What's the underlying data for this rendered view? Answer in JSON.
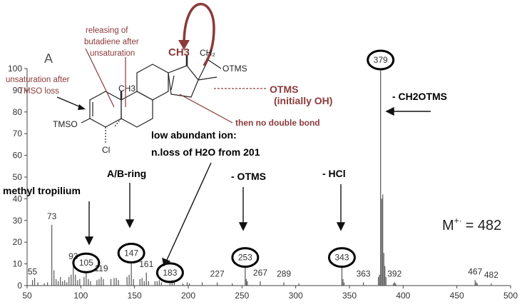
{
  "chart_data": {
    "type": "bar",
    "panel_label": "A",
    "xlim": [
      50,
      500
    ],
    "ylim": [
      0,
      100
    ],
    "x_ticks": [
      50,
      100,
      150,
      200,
      250,
      300,
      350,
      400,
      450,
      500
    ],
    "y_ticks": [
      0,
      10,
      20,
      30,
      40,
      50,
      60,
      70,
      80,
      90,
      100
    ],
    "grid": false,
    "peaks": [
      {
        "x": 55,
        "y": 2.5
      },
      {
        "x": 57,
        "y": 3.5
      },
      {
        "x": 60,
        "y": 1.5
      },
      {
        "x": 66,
        "y": 1
      },
      {
        "x": 69,
        "y": 1.5
      },
      {
        "x": 73,
        "y": 28
      },
      {
        "x": 75,
        "y": 7
      },
      {
        "x": 77,
        "y": 3
      },
      {
        "x": 79,
        "y": 2
      },
      {
        "x": 81,
        "y": 4
      },
      {
        "x": 83,
        "y": 2
      },
      {
        "x": 85,
        "y": 2.5
      },
      {
        "x": 87,
        "y": 1.5
      },
      {
        "x": 89,
        "y": 4
      },
      {
        "x": 91,
        "y": 5
      },
      {
        "x": 93,
        "y": 9.5
      },
      {
        "x": 95,
        "y": 5
      },
      {
        "x": 97,
        "y": 2.5
      },
      {
        "x": 99,
        "y": 3
      },
      {
        "x": 103,
        "y": 4
      },
      {
        "x": 105,
        "y": 6.5
      },
      {
        "x": 107,
        "y": 3
      },
      {
        "x": 109,
        "y": 2
      },
      {
        "x": 115,
        "y": 2.5
      },
      {
        "x": 117,
        "y": 3
      },
      {
        "x": 119,
        "y": 4
      },
      {
        "x": 121,
        "y": 3
      },
      {
        "x": 128,
        "y": 3
      },
      {
        "x": 131,
        "y": 3.5
      },
      {
        "x": 133,
        "y": 3.5
      },
      {
        "x": 135,
        "y": 2.5
      },
      {
        "x": 143,
        "y": 4
      },
      {
        "x": 145,
        "y": 5
      },
      {
        "x": 147,
        "y": 11
      },
      {
        "x": 149,
        "y": 3
      },
      {
        "x": 155,
        "y": 3
      },
      {
        "x": 157,
        "y": 3.5
      },
      {
        "x": 159,
        "y": 2
      },
      {
        "x": 161,
        "y": 6
      },
      {
        "x": 163,
        "y": 2
      },
      {
        "x": 169,
        "y": 2
      },
      {
        "x": 171,
        "y": 2
      },
      {
        "x": 173,
        "y": 2.5
      },
      {
        "x": 175,
        "y": 1.5
      },
      {
        "x": 183,
        "y": 2
      },
      {
        "x": 185,
        "y": 2.5
      },
      {
        "x": 187,
        "y": 1.5
      },
      {
        "x": 195,
        "y": 1
      },
      {
        "x": 199,
        "y": 1.5
      },
      {
        "x": 201,
        "y": 1
      },
      {
        "x": 213,
        "y": 1.5
      },
      {
        "x": 227,
        "y": 1.5
      },
      {
        "x": 241,
        "y": 1
      },
      {
        "x": 253,
        "y": 9
      },
      {
        "x": 254,
        "y": 3
      },
      {
        "x": 255,
        "y": 2
      },
      {
        "x": 267,
        "y": 2
      },
      {
        "x": 289,
        "y": 1.5
      },
      {
        "x": 303,
        "y": 1
      },
      {
        "x": 343,
        "y": 9
      },
      {
        "x": 344,
        "y": 3
      },
      {
        "x": 345,
        "y": 1.5
      },
      {
        "x": 363,
        "y": 1.5
      },
      {
        "x": 377,
        "y": 4
      },
      {
        "x": 378,
        "y": 5
      },
      {
        "x": 379,
        "y": 100
      },
      {
        "x": 380,
        "y": 40
      },
      {
        "x": 381,
        "y": 42
      },
      {
        "x": 382,
        "y": 15
      },
      {
        "x": 383,
        "y": 9
      },
      {
        "x": 384,
        "y": 4
      },
      {
        "x": 391,
        "y": 1
      },
      {
        "x": 392,
        "y": 1.5
      },
      {
        "x": 393,
        "y": 1
      },
      {
        "x": 467,
        "y": 2.5
      },
      {
        "x": 468,
        "y": 1.5
      },
      {
        "x": 469,
        "y": 1
      },
      {
        "x": 482,
        "y": 1
      }
    ],
    "peak_labels": [
      {
        "x": 55,
        "y": 2.5,
        "text": "55",
        "circled": false
      },
      {
        "x": 73,
        "y": 28,
        "text": "73",
        "circled": false
      },
      {
        "x": 93,
        "y": 9.5,
        "text": "93",
        "circled": false
      },
      {
        "x": 105,
        "y": 6.5,
        "text": "105",
        "circled": true
      },
      {
        "x": 119,
        "y": 4,
        "text": "119",
        "circled": false
      },
      {
        "x": 147,
        "y": 11,
        "text": "147",
        "circled": true
      },
      {
        "x": 161,
        "y": 6,
        "text": "161",
        "circled": false
      },
      {
        "x": 183,
        "y": 2,
        "text": "183",
        "circled": true
      },
      {
        "x": 227,
        "y": 1.5,
        "text": "227",
        "circled": false
      },
      {
        "x": 253,
        "y": 9,
        "text": "253",
        "circled": true
      },
      {
        "x": 267,
        "y": 2,
        "text": "267",
        "circled": false
      },
      {
        "x": 289,
        "y": 1.5,
        "text": "289",
        "circled": false
      },
      {
        "x": 343,
        "y": 9,
        "text": "343",
        "circled": true
      },
      {
        "x": 363,
        "y": 1.5,
        "text": "363",
        "circled": false
      },
      {
        "x": 379,
        "y": 100,
        "text": "379",
        "circled": true
      },
      {
        "x": 392,
        "y": 1.5,
        "text": "392",
        "circled": false
      },
      {
        "x": 467,
        "y": 2.5,
        "text": "467",
        "circled": false
      },
      {
        "x": 482,
        "y": 1,
        "text": "482",
        "circled": false
      }
    ],
    "annotations": [
      {
        "text": "methyl tropilium",
        "color": "#000000"
      },
      {
        "text": "A/B-ring",
        "color": "#000000"
      },
      {
        "text": "low abundant ion:",
        "color": "#000000"
      },
      {
        "text": "n.loss of H2O from 201",
        "color": "#000000"
      },
      {
        "text": "- OTMS",
        "color": "#000000"
      },
      {
        "text": "- HCl",
        "color": "#000000"
      },
      {
        "text": "- CH2OTMS",
        "color": "#000000"
      }
    ],
    "molecular_ion": {
      "symbol": "M",
      "superscript": "+·",
      "value": "= 482"
    },
    "structure": {
      "atom_labels": [
        "CH3",
        "CH₂",
        "OTMS",
        "CH3",
        "TMSO",
        "Cl"
      ],
      "notes": [
        {
          "text": "releasing of",
          "color": "#8b3a3a"
        },
        {
          "text": "butadiene after",
          "color": "#8b3a3a"
        },
        {
          "text": "unsaturation",
          "color": "#8b3a3a"
        },
        {
          "text": "unsaturation after",
          "color": "#8b3a3a"
        },
        {
          "text": "TMSO loss",
          "color": "#8b3a3a"
        },
        {
          "text": "OTMS",
          "color": "#8b3a3a"
        },
        {
          "text": "(initially OH)",
          "color": "#8b3a3a"
        },
        {
          "text": "then no double bond",
          "color": "#8b3a3a"
        }
      ]
    }
  }
}
